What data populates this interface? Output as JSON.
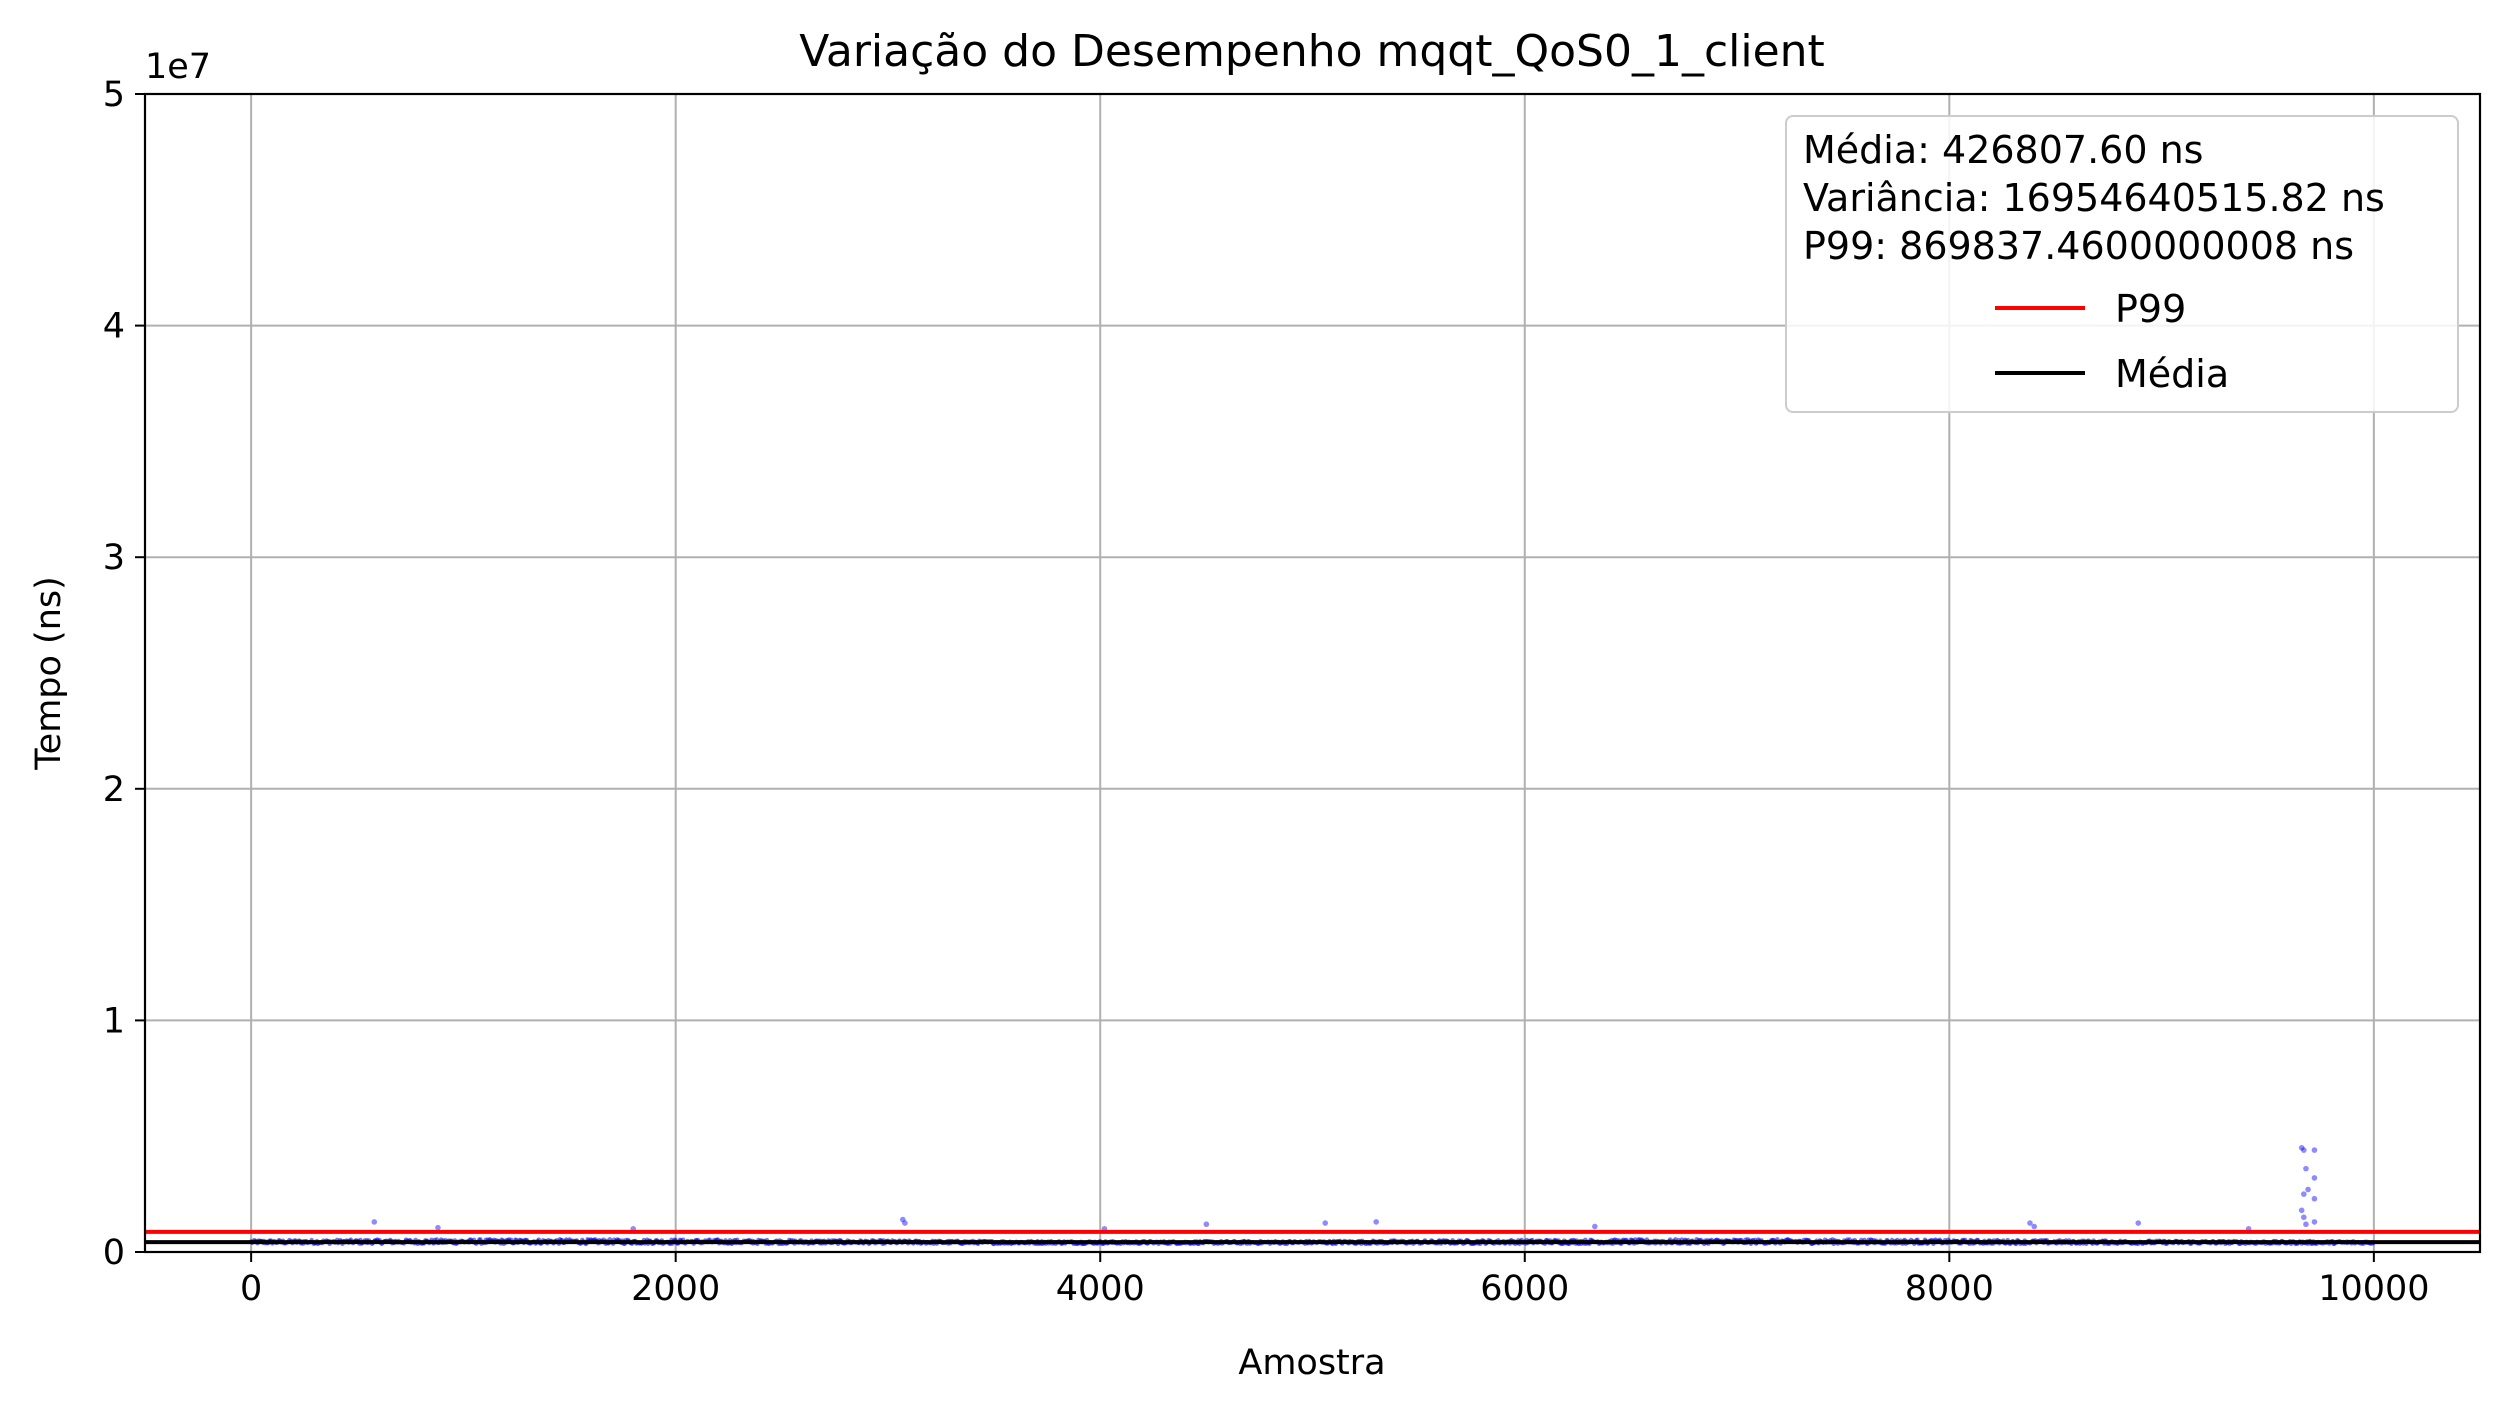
{
  "chart_data": {
    "type": "scatter",
    "title": "Variação do Desempenho mqqt_QoS0_1_client",
    "xlabel": "Amostra",
    "ylabel": "Tempo (ns)",
    "y_offset_label": "1e7",
    "xlim": [
      -500,
      10500
    ],
    "ylim": [
      0,
      50000000
    ],
    "x_ticks": [
      0,
      2000,
      4000,
      6000,
      8000,
      10000
    ],
    "x_tick_labels": [
      "0",
      "2000",
      "4000",
      "6000",
      "8000",
      "10000"
    ],
    "y_ticks": [
      0,
      10000000,
      20000000,
      30000000,
      40000000,
      50000000
    ],
    "y_tick_labels": [
      "0",
      "1",
      "2",
      "3",
      "4",
      "5"
    ],
    "grid": true,
    "legend": {
      "placement": "top-right",
      "stats_lines": [
        "Média: 426807.60 ns",
        "Variância: 16954640515.82 ns",
        "P99: 869837.4600000008 ns"
      ],
      "entries": [
        {
          "label": "P99",
          "color": "#ff0000"
        },
        {
          "label": "Média",
          "color": "#000000"
        }
      ]
    },
    "hlines": [
      {
        "name": "P99",
        "y": 869837.46,
        "color": "#ff0000"
      },
      {
        "name": "Média",
        "y": 426807.6,
        "color": "#000000"
      }
    ],
    "series": [
      {
        "marker_color": "#0000ff",
        "x_range": [
          0,
          10000
        ],
        "typical_range": [
          250000,
          650000
        ],
        "outliers": [
          {
            "x": 580,
            "y": 1300000
          },
          {
            "x": 880,
            "y": 1050000
          },
          {
            "x": 1800,
            "y": 1000000
          },
          {
            "x": 3070,
            "y": 1400000
          },
          {
            "x": 3080,
            "y": 1250000
          },
          {
            "x": 4020,
            "y": 1000000
          },
          {
            "x": 4500,
            "y": 1200000
          },
          {
            "x": 5060,
            "y": 1250000
          },
          {
            "x": 5300,
            "y": 1300000
          },
          {
            "x": 6330,
            "y": 1100000
          },
          {
            "x": 8380,
            "y": 1250000
          },
          {
            "x": 8400,
            "y": 1100000
          },
          {
            "x": 8890,
            "y": 1250000
          },
          {
            "x": 9660,
            "y": 4500000
          },
          {
            "x": 9670,
            "y": 4400000
          },
          {
            "x": 9680,
            "y": 3600000
          },
          {
            "x": 9670,
            "y": 2500000
          },
          {
            "x": 9690,
            "y": 2700000
          },
          {
            "x": 9660,
            "y": 1800000
          },
          {
            "x": 9670,
            "y": 1500000
          },
          {
            "x": 9680,
            "y": 1200000
          },
          {
            "x": 9720,
            "y": 4400000
          },
          {
            "x": 9720,
            "y": 3200000
          },
          {
            "x": 9720,
            "y": 2300000
          },
          {
            "x": 9720,
            "y": 1300000
          },
          {
            "x": 9410,
            "y": 1000000
          }
        ]
      }
    ]
  }
}
